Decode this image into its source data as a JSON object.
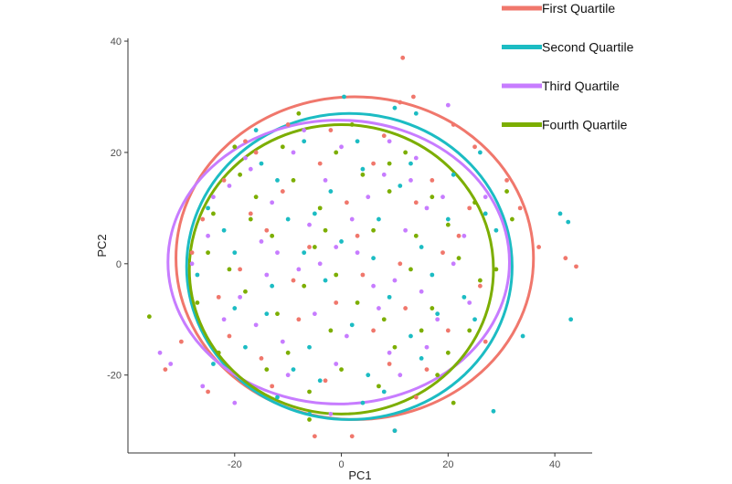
{
  "chart_data": {
    "type": "scatter",
    "xlabel": "PC1",
    "ylabel": "PC2",
    "xlim": [
      -40,
      47
    ],
    "ylim": [
      -34,
      40.5
    ],
    "x_ticks": [
      -20,
      0,
      20,
      40
    ],
    "y_ticks": [
      -20,
      0,
      20,
      40
    ],
    "x_tick_labels": [
      "-20",
      "0",
      "20",
      "40"
    ],
    "y_tick_labels": [
      "-20",
      "0",
      "20",
      "40"
    ],
    "grid": false,
    "legend_position": "top-right",
    "series": [
      {
        "name": "First Quartile",
        "color": "#F0776C",
        "ellipse": {
          "cx": 2.5,
          "cy": 1,
          "rx": 33.5,
          "ry": 29
        },
        "points": [
          [
            11.5,
            37
          ],
          [
            13.5,
            30
          ],
          [
            11,
            29
          ],
          [
            21,
            25
          ],
          [
            25,
            21
          ],
          [
            31,
            15
          ],
          [
            33.5,
            10
          ],
          [
            37,
            3
          ],
          [
            42,
            1
          ],
          [
            44,
            -0.5
          ],
          [
            -30,
            -14
          ],
          [
            -33,
            -19
          ],
          [
            -25,
            -23
          ],
          [
            -5,
            -31
          ],
          [
            2,
            -31
          ],
          [
            10,
            -30
          ],
          [
            14,
            -24
          ],
          [
            -28,
            2
          ],
          [
            -22,
            15
          ],
          [
            -18,
            22
          ],
          [
            -10,
            25
          ],
          [
            -2,
            24
          ],
          [
            6,
            18
          ],
          [
            14,
            11
          ],
          [
            22,
            5
          ],
          [
            26,
            -4
          ],
          [
            20,
            -12
          ],
          [
            9,
            -18
          ],
          [
            -3,
            -21
          ],
          [
            -15,
            -17
          ],
          [
            -23,
            -6
          ],
          [
            -14,
            6
          ],
          [
            -6,
            3
          ],
          [
            4,
            -2
          ],
          [
            -8,
            -10
          ],
          [
            12,
            -8
          ],
          [
            -19,
            -1
          ],
          [
            17,
            15
          ],
          [
            1,
            11
          ],
          [
            -11,
            13
          ],
          [
            -21,
            -13
          ],
          [
            6,
            -12
          ],
          [
            -4,
            18
          ],
          [
            24,
            10
          ],
          [
            16,
            -19
          ],
          [
            -26,
            8
          ],
          [
            -13,
            -22
          ],
          [
            8,
            23
          ],
          [
            -1,
            -7
          ],
          [
            19,
            2
          ],
          [
            -16,
            20
          ],
          [
            27,
            -14
          ],
          [
            -9,
            -3
          ],
          [
            3,
            5
          ],
          [
            11,
            0
          ],
          [
            -17,
            9
          ]
        ]
      },
      {
        "name": "Second Quartile",
        "color": "#1CBCC3",
        "ellipse": {
          "cx": 1.5,
          "cy": -0.5,
          "rx": 30.5,
          "ry": 27.5
        },
        "points": [
          [
            0.5,
            30
          ],
          [
            10,
            28
          ],
          [
            14,
            27
          ],
          [
            26,
            20
          ],
          [
            27,
            9
          ],
          [
            29,
            6
          ],
          [
            41,
            9
          ],
          [
            42.5,
            7.5
          ],
          [
            43,
            -10
          ],
          [
            34,
            -13
          ],
          [
            28.5,
            -26.5
          ],
          [
            10,
            -30
          ],
          [
            4,
            -25
          ],
          [
            -6,
            -27
          ],
          [
            -12,
            -24
          ],
          [
            -24,
            -18
          ],
          [
            -27,
            -2
          ],
          [
            -25,
            10
          ],
          [
            -15,
            18
          ],
          [
            -7,
            22
          ],
          [
            3,
            22
          ],
          [
            13,
            18
          ],
          [
            20,
            8
          ],
          [
            23,
            -6
          ],
          [
            15,
            -17
          ],
          [
            5,
            -20
          ],
          [
            -6,
            -15
          ],
          [
            -14,
            -9
          ],
          [
            -20,
            2
          ],
          [
            -10,
            8
          ],
          [
            -2,
            13
          ],
          [
            7,
            8
          ],
          [
            15,
            3
          ],
          [
            9,
            -6
          ],
          [
            -3,
            -3
          ],
          [
            -12,
            15
          ],
          [
            18,
            -9
          ],
          [
            -18,
            -15
          ],
          [
            2,
            -11
          ],
          [
            -7,
            2
          ],
          [
            11,
            14
          ],
          [
            -22,
            6
          ],
          [
            6,
            1
          ],
          [
            21,
            16
          ],
          [
            -4,
            -21
          ],
          [
            13,
            -13
          ],
          [
            -16,
            24
          ],
          [
            25,
            -10
          ],
          [
            -9,
            -19
          ],
          [
            0,
            4
          ],
          [
            17,
            -2
          ],
          [
            -13,
            -4
          ],
          [
            8,
            -23
          ],
          [
            -20,
            -8
          ],
          [
            4,
            17
          ],
          [
            -5,
            9
          ]
        ]
      },
      {
        "name": "Third Quartile",
        "color": "#C77CFF",
        "ellipse": {
          "cx": -0.5,
          "cy": 0.3,
          "rx": 32,
          "ry": 25.5
        },
        "points": [
          [
            20,
            28.5
          ],
          [
            13,
            15
          ],
          [
            -2,
            -27
          ],
          [
            -34,
            -16
          ],
          [
            -32,
            -18
          ],
          [
            -26,
            -22
          ],
          [
            -20,
            -25
          ],
          [
            -28,
            0
          ],
          [
            -24,
            12
          ],
          [
            -17,
            17
          ],
          [
            -9,
            20
          ],
          [
            0,
            21
          ],
          [
            8,
            16
          ],
          [
            16,
            10
          ],
          [
            21,
            0
          ],
          [
            18,
            -10
          ],
          [
            9,
            -16
          ],
          [
            -1,
            -18
          ],
          [
            -11,
            -14
          ],
          [
            -19,
            -6
          ],
          [
            -15,
            4
          ],
          [
            -6,
            7
          ],
          [
            3,
            2
          ],
          [
            10,
            -3
          ],
          [
            -5,
            -9
          ],
          [
            12,
            6
          ],
          [
            -13,
            11
          ],
          [
            5,
            12
          ],
          [
            -22,
            -10
          ],
          [
            -8,
            -1
          ],
          [
            1,
            -13
          ],
          [
            16,
            -15
          ],
          [
            -18,
            19
          ],
          [
            24,
            -7
          ],
          [
            -3,
            15
          ],
          [
            7,
            -8
          ],
          [
            -25,
            5
          ],
          [
            14,
            19
          ],
          [
            -10,
            -20
          ],
          [
            19,
            12
          ],
          [
            -14,
            -2
          ],
          [
            2,
            8
          ],
          [
            -7,
            24
          ],
          [
            11,
            -20
          ],
          [
            -21,
            14
          ],
          [
            23,
            5
          ],
          [
            -4,
            0
          ],
          [
            9,
            22
          ],
          [
            -16,
            -11
          ],
          [
            6,
            -4
          ],
          [
            -12,
            2
          ],
          [
            27,
            12
          ],
          [
            -1,
            3
          ],
          [
            15,
            -5
          ]
        ]
      },
      {
        "name": "Fourth Quartile",
        "color": "#7CAE00",
        "ellipse": {
          "cx": 0,
          "cy": -1,
          "rx": 28.5,
          "ry": 26
        },
        "points": [
          [
            -36,
            -9.5
          ],
          [
            21,
            -25
          ],
          [
            -6,
            -28
          ],
          [
            20,
            -16
          ],
          [
            25,
            11
          ],
          [
            31,
            13
          ],
          [
            32,
            8
          ],
          [
            29,
            -1
          ],
          [
            -23,
            -16
          ],
          [
            -27,
            -7
          ],
          [
            -24,
            9
          ],
          [
            -19,
            16
          ],
          [
            -11,
            21
          ],
          [
            -1,
            20
          ],
          [
            9,
            18
          ],
          [
            17,
            12
          ],
          [
            22,
            1
          ],
          [
            17,
            -8
          ],
          [
            10,
            -15
          ],
          [
            0,
            -19
          ],
          [
            -10,
            -16
          ],
          [
            -18,
            -5
          ],
          [
            -13,
            5
          ],
          [
            -4,
            10
          ],
          [
            6,
            6
          ],
          [
            13,
            -1
          ],
          [
            3,
            -7
          ],
          [
            -7,
            -4
          ],
          [
            -16,
            12
          ],
          [
            9,
            13
          ],
          [
            -2,
            -12
          ],
          [
            15,
            -12
          ],
          [
            -21,
            -1
          ],
          [
            4,
            16
          ],
          [
            -9,
            15
          ],
          [
            20,
            7
          ],
          [
            -14,
            -19
          ],
          [
            7,
            -22
          ],
          [
            -5,
            3
          ],
          [
            12,
            20
          ],
          [
            -20,
            21
          ],
          [
            -1,
            -2
          ],
          [
            -12,
            -9
          ],
          [
            18,
            -20
          ],
          [
            -25,
            2
          ],
          [
            2,
            25
          ],
          [
            24,
            -12
          ],
          [
            -6,
            -23
          ],
          [
            14,
            5
          ],
          [
            -17,
            8
          ],
          [
            8,
            -10
          ],
          [
            -3,
            6
          ],
          [
            -8,
            27
          ],
          [
            26,
            -3
          ]
        ]
      }
    ]
  }
}
